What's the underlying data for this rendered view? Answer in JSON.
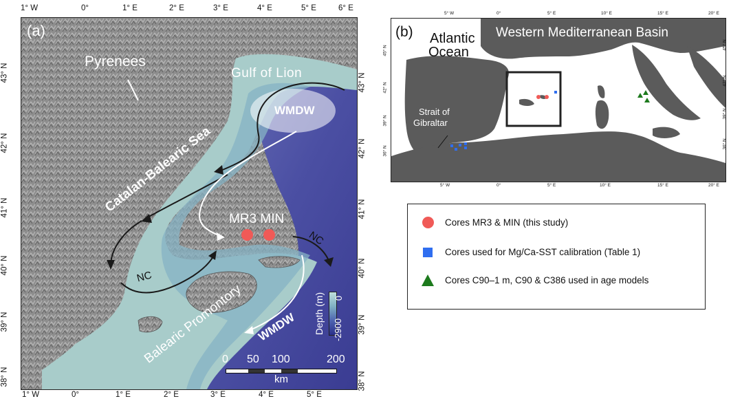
{
  "panel_a": {
    "label": "(a)",
    "top_ticks": [
      "1° W",
      "0°",
      "1° E",
      "2° E",
      "3° E",
      "4° E",
      "5° E",
      "6° E"
    ],
    "bottom_ticks": [
      "1° W",
      "0°",
      "1° E",
      "2° E",
      "3° E",
      "4° E",
      "5° E"
    ],
    "left_ticks": [
      "43° N",
      "42° N",
      "41° N",
      "40° N",
      "39° N",
      "38° N"
    ],
    "right_ticks": [
      "43° N",
      "42° N",
      "41° N",
      "40° N",
      "39° N",
      "38° N"
    ],
    "labels": {
      "pyrenees": "Pyrenees",
      "gulf_of_lion": "Gulf of Lion",
      "wmdw_top": "WMDW",
      "catalan_balearic_sea": "Catalan-Balearic Sea",
      "cores": "MR3 MIN",
      "nc_right": "NC",
      "nc_left": "NC",
      "balearic_promontory": "Balearic Promontory",
      "wmdw_bottom": "WMDW"
    },
    "depth_scale": {
      "title": "Depth (m)",
      "min": "0",
      "max": "-2900"
    },
    "distance_scale": {
      "ticks": [
        "0",
        "50",
        "100",
        "200"
      ],
      "unit": "km"
    }
  },
  "panel_b": {
    "label": "(b)",
    "top_ticks": [
      "5° W",
      "0°",
      "5° E",
      "10° E",
      "15° E",
      "20° E"
    ],
    "bottom_ticks": [
      "5° W",
      "0°",
      "5° E",
      "10° E",
      "15° E",
      "20° E"
    ],
    "left_ticks": [
      "45° N",
      "42° N",
      "39° N",
      "36° N"
    ],
    "right_ticks": [
      "45° N",
      "42° N",
      "39° N",
      "36° N"
    ],
    "labels": {
      "atlantic_1": "Atlantic",
      "atlantic_2": "Ocean",
      "basin": "Western Mediterranean Basin",
      "strait_1": "Strait of",
      "strait_2": "Gibraltar"
    }
  },
  "legend": {
    "items": [
      {
        "label": "Cores MR3 & MIN (this study)",
        "symbol": "circle",
        "color": "#f05a57"
      },
      {
        "label": "Cores used for Mg/Ca-SST calibration (Table 1)",
        "symbol": "square",
        "color": "#2f6ef0"
      },
      {
        "label": "Cores C90–1 m, C90 & C386 used in age models",
        "symbol": "triangle",
        "color": "#1d7a1d"
      }
    ]
  }
}
